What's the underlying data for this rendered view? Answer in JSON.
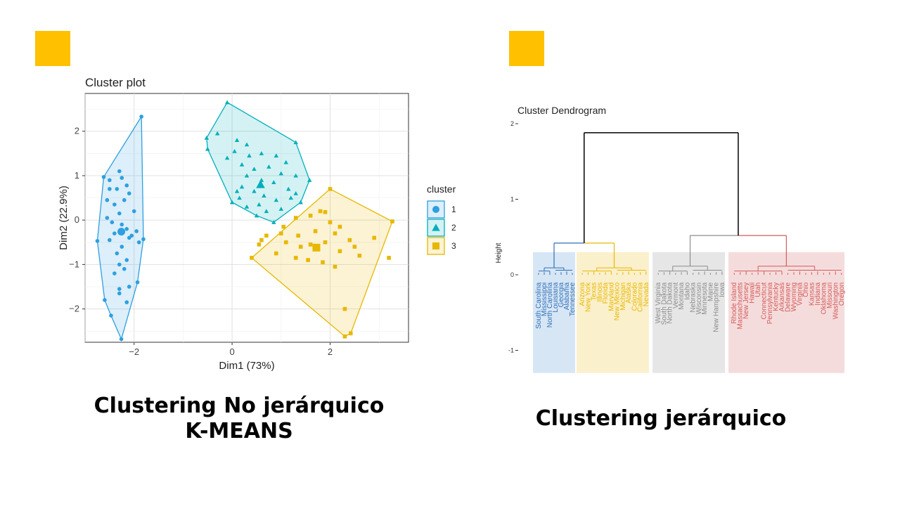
{
  "slide": {
    "accent_color": "#FFC000",
    "left_caption_line1": "Clustering No jerárquico",
    "left_caption_line2": "K-MEANS",
    "right_caption": "Clustering jerárquico"
  },
  "chart_data": [
    {
      "type": "scatter",
      "title": "Cluster plot",
      "xlabel": "Dim1 (73%)",
      "ylabel": "Dim2 (22.9%)",
      "xlim": [
        -3.0,
        3.6
      ],
      "ylim": [
        -2.75,
        2.85
      ],
      "xticks": [
        -2,
        0,
        2
      ],
      "yticks": [
        -2,
        -1,
        0,
        1,
        2
      ],
      "grid": true,
      "legend_position": "right",
      "legend_title": "cluster",
      "series": [
        {
          "name": "1",
          "color": "#2E9FDF",
          "marker": "circle",
          "center": [
            -2.26,
            -0.26
          ],
          "hull": [
            [
              -1.85,
              2.33
            ],
            [
              -2.62,
              0.97
            ],
            [
              -2.75,
              -0.47
            ],
            [
              -2.6,
              -1.8
            ],
            [
              -2.47,
              -2.15
            ],
            [
              -2.26,
              -2.68
            ],
            [
              -1.93,
              -1.4
            ],
            [
              -1.81,
              -0.43
            ]
          ],
          "points": [
            [
              -1.85,
              2.33
            ],
            [
              -2.62,
              0.97
            ],
            [
              -2.75,
              -0.47
            ],
            [
              -2.6,
              -1.8
            ],
            [
              -2.47,
              -2.15
            ],
            [
              -2.26,
              -2.68
            ],
            [
              -1.93,
              -1.4
            ],
            [
              -1.81,
              -0.43
            ],
            [
              -2.3,
              1.1
            ],
            [
              -2.25,
              0.95
            ],
            [
              -2.5,
              0.9
            ],
            [
              -2.15,
              0.78
            ],
            [
              -2.35,
              0.7
            ],
            [
              -2.1,
              0.6
            ],
            [
              -2.2,
              0.45
            ],
            [
              -2.55,
              0.45
            ],
            [
              -2.4,
              0.35
            ],
            [
              -2.0,
              0.2
            ],
            [
              -2.3,
              0.15
            ],
            [
              -2.55,
              0.05
            ],
            [
              -2.45,
              -0.05
            ],
            [
              -2.25,
              -0.1
            ],
            [
              -2.15,
              -0.2
            ],
            [
              -1.95,
              -0.25
            ],
            [
              -2.4,
              -0.3
            ],
            [
              -2.1,
              -0.4
            ],
            [
              -2.5,
              -0.45
            ],
            [
              -1.9,
              -0.5
            ],
            [
              -2.25,
              -0.6
            ],
            [
              -2.35,
              -0.75
            ],
            [
              -2.15,
              -0.9
            ],
            [
              -2.3,
              -1.0
            ],
            [
              -2.2,
              -1.1
            ],
            [
              -2.4,
              -1.2
            ],
            [
              -2.1,
              -1.5
            ],
            [
              -2.3,
              -1.65
            ],
            [
              -2.15,
              -1.85
            ],
            [
              -2.3,
              -1.55
            ],
            [
              -2.05,
              -0.35
            ],
            [
              -2.5,
              0.7
            ]
          ]
        },
        {
          "name": "2",
          "color": "#00AFBB",
          "marker": "triangle",
          "center": [
            0.58,
            0.8
          ],
          "hull": [
            [
              -0.1,
              2.65
            ],
            [
              -0.52,
              1.85
            ],
            [
              -0.5,
              1.6
            ],
            [
              0.0,
              0.4
            ],
            [
              0.5,
              0.1
            ],
            [
              0.85,
              -0.05
            ],
            [
              1.4,
              0.4
            ],
            [
              1.58,
              0.9
            ],
            [
              1.3,
              1.75
            ]
          ],
          "points": [
            [
              -0.1,
              2.65
            ],
            [
              -0.52,
              1.85
            ],
            [
              -0.5,
              1.6
            ],
            [
              0.0,
              0.4
            ],
            [
              0.5,
              0.1
            ],
            [
              0.85,
              -0.05
            ],
            [
              1.4,
              0.4
            ],
            [
              1.58,
              0.9
            ],
            [
              1.3,
              1.75
            ],
            [
              -0.3,
              1.95
            ],
            [
              0.1,
              1.8
            ],
            [
              0.3,
              1.7
            ],
            [
              0.05,
              1.55
            ],
            [
              0.35,
              1.45
            ],
            [
              -0.1,
              1.4
            ],
            [
              0.6,
              1.5
            ],
            [
              0.9,
              1.45
            ],
            [
              1.1,
              1.3
            ],
            [
              0.2,
              1.25
            ],
            [
              0.45,
              1.15
            ],
            [
              0.75,
              1.2
            ],
            [
              1.0,
              1.05
            ],
            [
              1.3,
              1.0
            ],
            [
              0.3,
              1.0
            ],
            [
              0.6,
              0.9
            ],
            [
              0.85,
              0.85
            ],
            [
              1.15,
              0.7
            ],
            [
              0.2,
              0.75
            ],
            [
              0.45,
              0.65
            ],
            [
              1.3,
              0.6
            ],
            [
              0.65,
              0.55
            ],
            [
              0.9,
              0.45
            ],
            [
              0.15,
              0.5
            ],
            [
              0.3,
              0.3
            ],
            [
              0.55,
              0.35
            ],
            [
              0.7,
              0.2
            ],
            [
              1.0,
              0.25
            ],
            [
              0.1,
              0.65
            ],
            [
              1.2,
              0.5
            ]
          ]
        },
        {
          "name": "3",
          "color": "#E7B800",
          "marker": "square",
          "center": [
            1.72,
            -0.62
          ],
          "hull": [
            [
              2.0,
              0.7
            ],
            [
              3.27,
              -0.03
            ],
            [
              2.42,
              -2.55
            ],
            [
              2.3,
              -2.62
            ],
            [
              0.4,
              -0.85
            ]
          ],
          "points": [
            [
              2.0,
              0.7
            ],
            [
              3.27,
              -0.03
            ],
            [
              2.42,
              -2.55
            ],
            [
              2.3,
              -2.62
            ],
            [
              0.4,
              -0.85
            ],
            [
              1.8,
              0.2
            ],
            [
              1.9,
              0.18
            ],
            [
              1.3,
              0.05
            ],
            [
              1.6,
              0.1
            ],
            [
              2.0,
              -0.05
            ],
            [
              2.2,
              -0.15
            ],
            [
              2.9,
              -0.4
            ],
            [
              1.0,
              -0.3
            ],
            [
              1.35,
              -0.35
            ],
            [
              1.7,
              -0.25
            ],
            [
              2.1,
              -0.3
            ],
            [
              2.4,
              -0.45
            ],
            [
              0.7,
              -0.35
            ],
            [
              1.1,
              -0.5
            ],
            [
              1.4,
              -0.6
            ],
            [
              1.6,
              -0.55
            ],
            [
              1.9,
              -0.5
            ],
            [
              2.2,
              -0.7
            ],
            [
              2.6,
              -0.8
            ],
            [
              0.55,
              -0.55
            ],
            [
              0.9,
              -0.75
            ],
            [
              1.3,
              -0.85
            ],
            [
              1.55,
              -0.9
            ],
            [
              1.85,
              -0.95
            ],
            [
              2.1,
              -1.05
            ],
            [
              3.2,
              -0.85
            ],
            [
              2.3,
              -2.0
            ],
            [
              0.6,
              -0.45
            ],
            [
              1.05,
              -0.15
            ],
            [
              2.5,
              -0.6
            ]
          ]
        }
      ]
    },
    {
      "type": "dendrogram",
      "title": "Cluster Dendrogram",
      "ylabel": "Height",
      "ylim": [
        -1.3,
        2.0
      ],
      "yticks": [
        -1,
        0,
        1,
        2
      ],
      "root_height": 1.88,
      "clusters": [
        {
          "color": "#2E6FB7",
          "fill": "#D7E6F5",
          "merge_height": 0.42,
          "labels": [
            "South Carolina",
            "Mississippi",
            "North Carolina",
            "Louisiana",
            "Georgia",
            "Alabama",
            "Tennessee"
          ]
        },
        {
          "color": "#E7B800",
          "fill": "#FBF0CC",
          "merge_height": 0.42,
          "labels": [
            "Arizona",
            "New York",
            "Texas",
            "Illinois",
            "Florida",
            "Maryland",
            "New Mexico",
            "Michigan",
            "Alaska",
            "Colorado",
            "California",
            "Nevada"
          ]
        },
        {
          "color": "#8C8C8C",
          "fill": "#E6E6E6",
          "merge_height": 0.52,
          "labels": [
            "West Virginia",
            "South Dakota",
            "North Dakota",
            "Vermont",
            "Montana",
            "Idaho",
            "Nebraska",
            "Wisconsin",
            "Minnesota",
            "Maine",
            "New Hampshire",
            "Iowa"
          ]
        },
        {
          "color": "#D45A5A",
          "fill": "#F5DCDC",
          "merge_height": 0.52,
          "labels": [
            "Rhode Island",
            "Massachusetts",
            "New Jersey",
            "Hawaii",
            "Utah",
            "Connecticut",
            "Pennsylvania",
            "Kentucky",
            "Arkansas",
            "Delaware",
            "Wyoming",
            "Virginia",
            "Ohio",
            "Kansas",
            "Indiana",
            "Oklahoma",
            "Missouri",
            "Washington",
            "Oregon"
          ]
        }
      ]
    }
  ]
}
